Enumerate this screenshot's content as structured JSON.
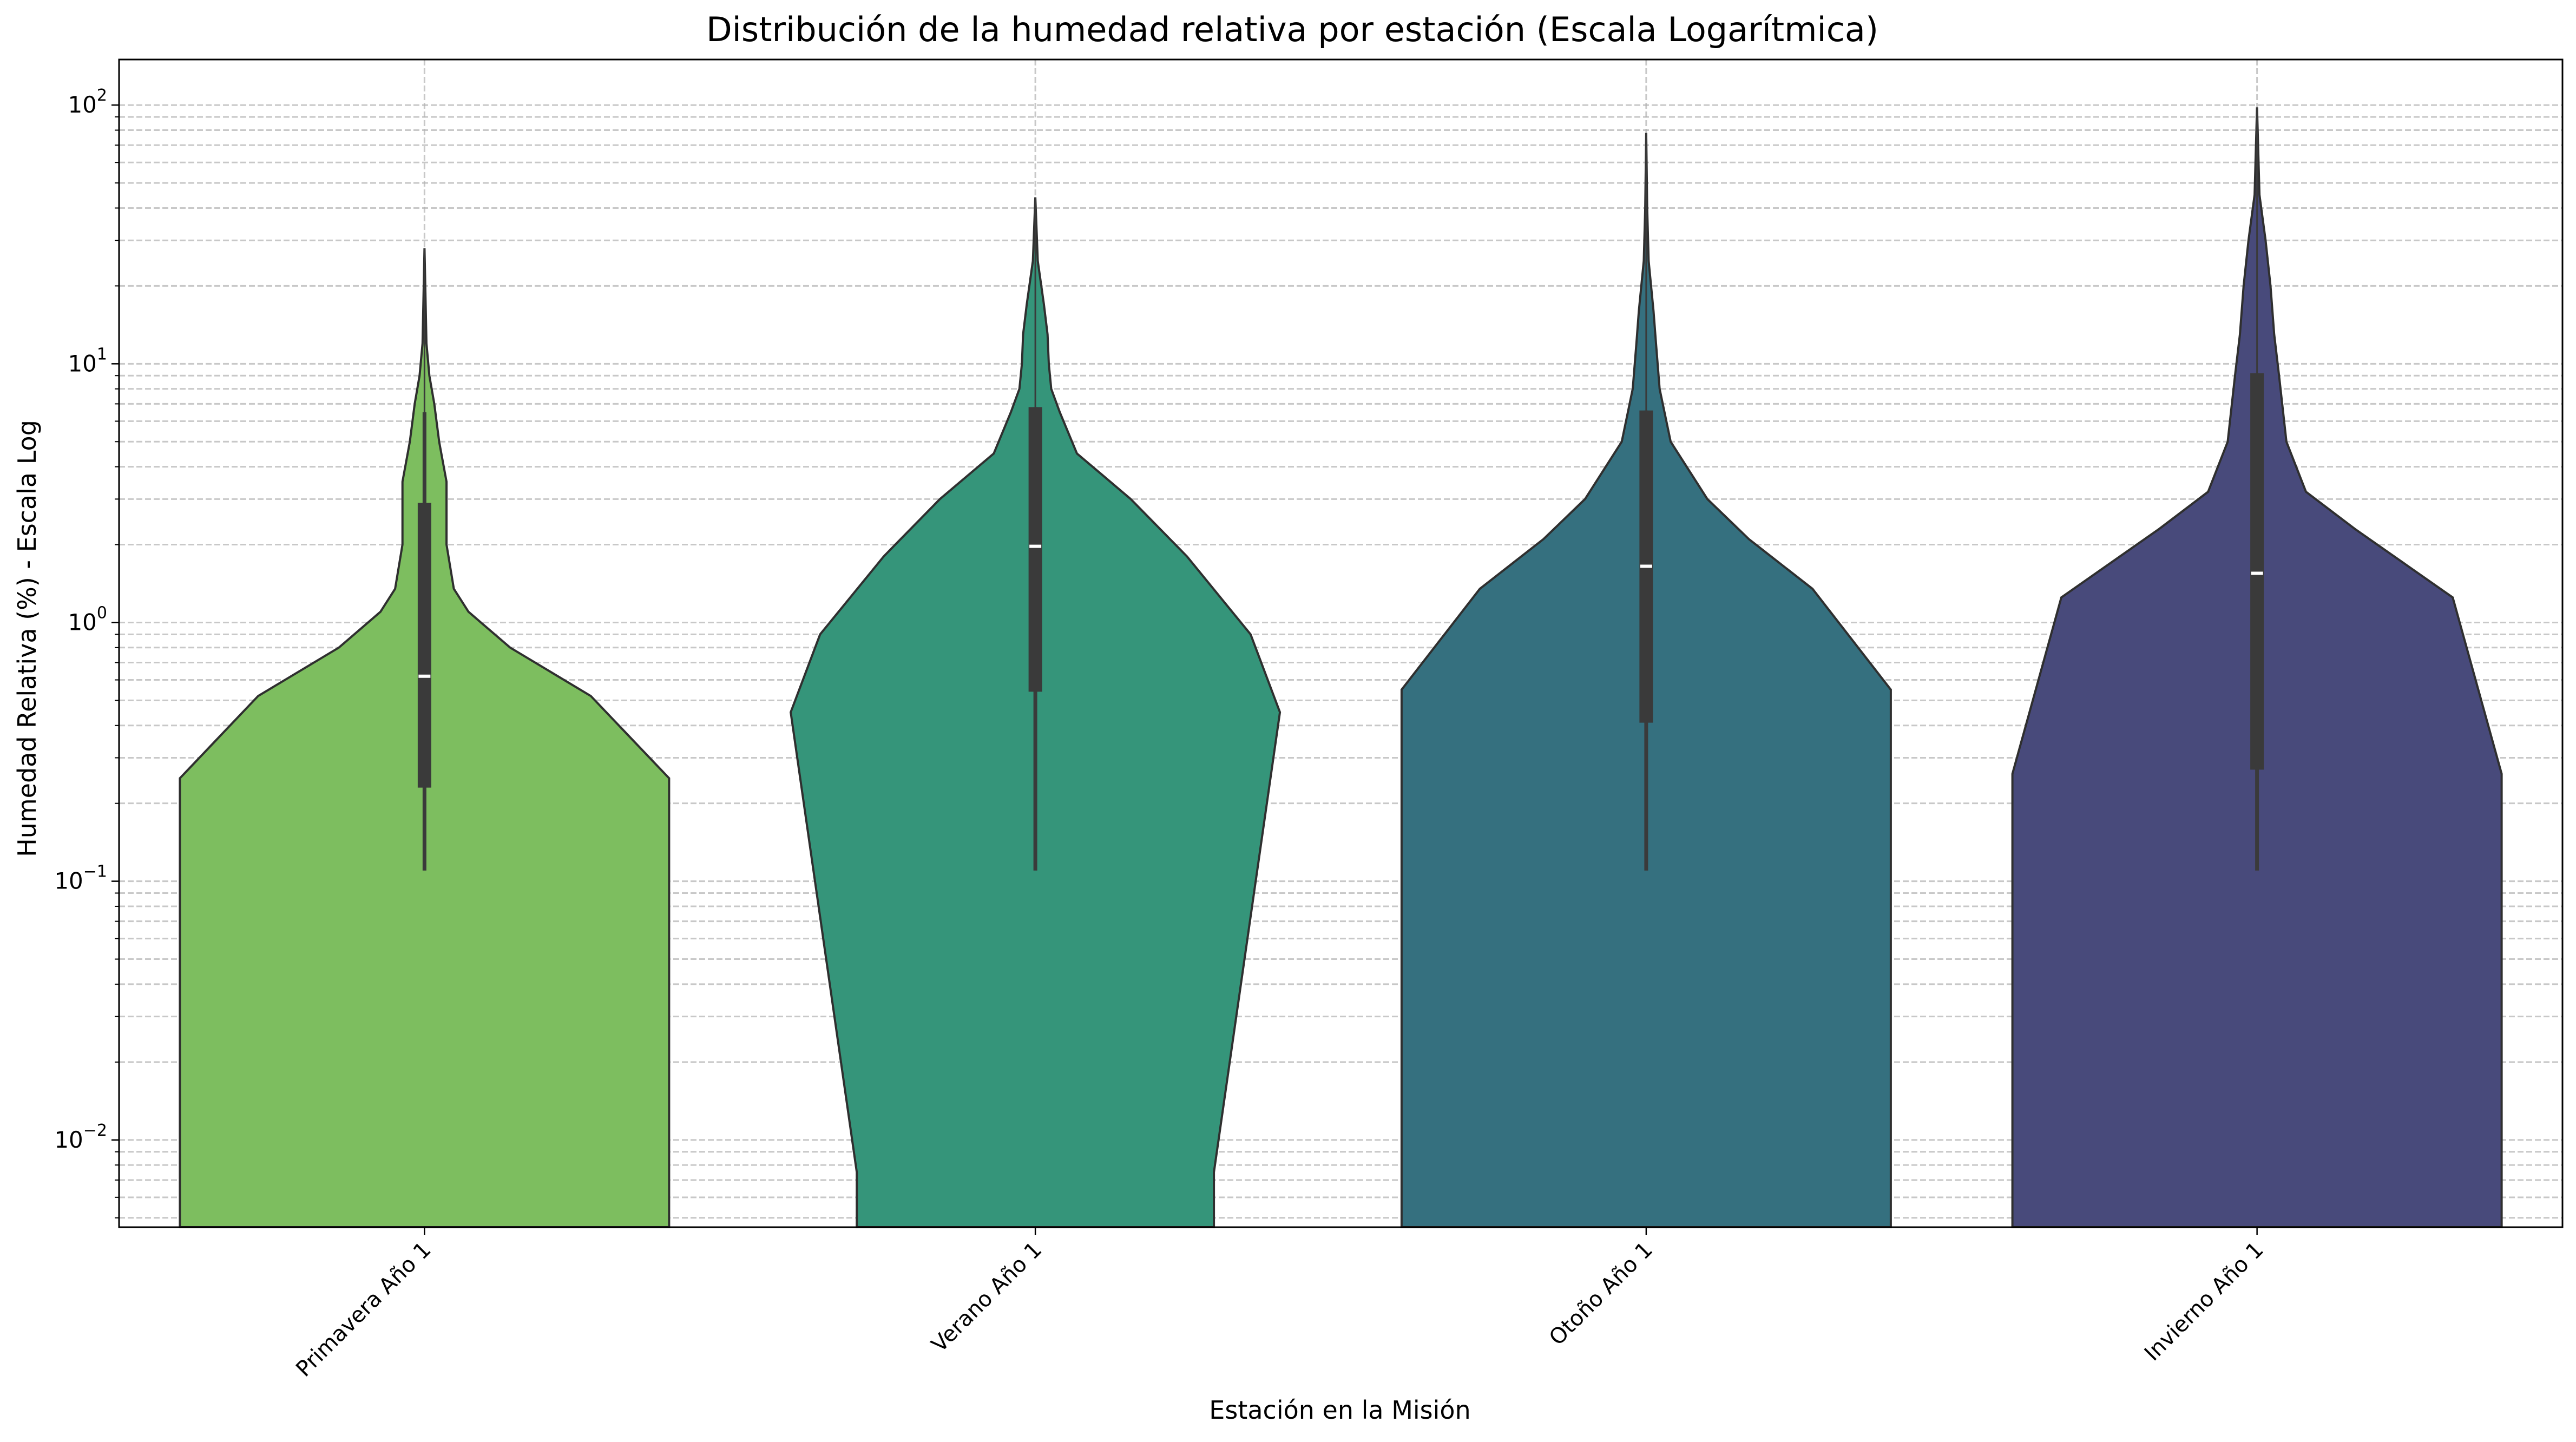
{
  "chart_data": {
    "type": "violin",
    "title": "Distribución de la humedad relativa por estación (Escala Logarítmica)",
    "xlabel": "Estación en la Misión",
    "ylabel": "Humedad Relativa (%) - Escala Log",
    "y_scale": "log",
    "ylim": [
      0.0046,
      150
    ],
    "y_ticks": [
      {
        "value": 0.01,
        "base": "10",
        "exp": "−2"
      },
      {
        "value": 0.1,
        "base": "10",
        "exp": "−1"
      },
      {
        "value": 1,
        "base": "10",
        "exp": "0"
      },
      {
        "value": 10,
        "base": "10",
        "exp": "1"
      },
      {
        "value": 100,
        "base": "10",
        "exp": "2"
      }
    ],
    "grid": true,
    "categories": [
      "Primavera Año 1",
      "Verano Año 1",
      "Otoño Año 1",
      "Invierno Año 1"
    ],
    "colors": [
      "#7dbe5f",
      "#35957a",
      "#35707f",
      "#484a7b"
    ],
    "violins": [
      {
        "category": "Primavera Año 1",
        "whisker": [
          0.11,
          6.5
        ],
        "q1": 0.23,
        "median": 0.62,
        "q3": 2.9,
        "tail_max": 28,
        "outline": [
          [
            0.0046,
            1.0
          ],
          [
            0.25,
            1.0
          ],
          [
            0.52,
            0.68
          ],
          [
            0.8,
            0.35
          ],
          [
            1.1,
            0.18
          ],
          [
            1.35,
            0.12
          ],
          [
            2.0,
            0.09
          ],
          [
            3.5,
            0.09
          ],
          [
            5.0,
            0.06
          ],
          [
            7.0,
            0.04
          ],
          [
            9.0,
            0.02
          ],
          [
            12.0,
            0.008
          ],
          [
            28.0,
            0.0
          ]
        ]
      },
      {
        "category": "Verano Año 1",
        "whisker": [
          0.11,
          6.8
        ],
        "q1": 0.54,
        "median": 1.97,
        "q3": 6.8,
        "tail_max": 44,
        "outline": [
          [
            0.0046,
            0.73
          ],
          [
            0.0075,
            0.73
          ],
          [
            0.45,
            1.0
          ],
          [
            0.9,
            0.88
          ],
          [
            1.8,
            0.62
          ],
          [
            3.0,
            0.39
          ],
          [
            4.5,
            0.17
          ],
          [
            6.5,
            0.1
          ],
          [
            8.0,
            0.065
          ],
          [
            10.0,
            0.055
          ],
          [
            13.0,
            0.05
          ],
          [
            17.0,
            0.035
          ],
          [
            25.0,
            0.01
          ],
          [
            44.0,
            0.0
          ]
        ]
      },
      {
        "category": "Otoño Año 1",
        "whisker": [
          0.11,
          6.6
        ],
        "q1": 0.41,
        "median": 1.65,
        "q3": 6.6,
        "tail_max": 78,
        "outline": [
          [
            0.0046,
            1.0
          ],
          [
            0.55,
            1.0
          ],
          [
            1.35,
            0.68
          ],
          [
            2.1,
            0.42
          ],
          [
            3.0,
            0.25
          ],
          [
            5.0,
            0.1
          ],
          [
            8.0,
            0.055
          ],
          [
            12.0,
            0.04
          ],
          [
            16.0,
            0.03
          ],
          [
            25.0,
            0.01
          ],
          [
            40.0,
            0.004
          ],
          [
            78.0,
            0.0
          ]
        ]
      },
      {
        "category": "Invierno Año 1",
        "whisker": [
          0.11,
          9.2
        ],
        "q1": 0.27,
        "median": 1.55,
        "q3": 9.2,
        "tail_max": 98,
        "outline": [
          [
            0.0046,
            1.0
          ],
          [
            0.26,
            1.0
          ],
          [
            1.25,
            0.8
          ],
          [
            2.3,
            0.4
          ],
          [
            3.2,
            0.2
          ],
          [
            5.0,
            0.12
          ],
          [
            9.0,
            0.09
          ],
          [
            13.0,
            0.07
          ],
          [
            20.0,
            0.055
          ],
          [
            30.0,
            0.035
          ],
          [
            45.0,
            0.01
          ],
          [
            98.0,
            0.0
          ]
        ]
      }
    ]
  }
}
